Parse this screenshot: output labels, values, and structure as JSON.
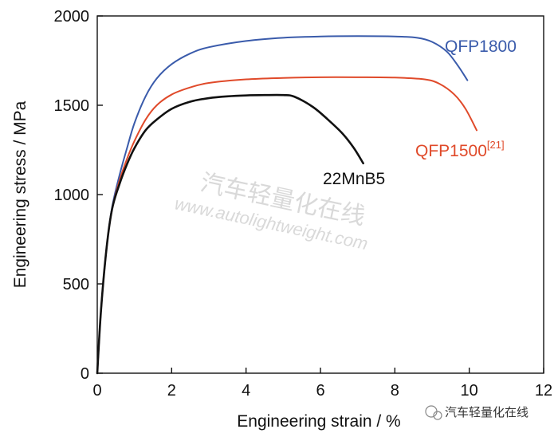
{
  "chart_data": {
    "type": "line",
    "xlabel": "Engineering strain / %",
    "ylabel": "Engineering stress / MPa",
    "xlim": [
      0,
      12
    ],
    "ylim": [
      0,
      2000
    ],
    "xticks": [
      0,
      2,
      4,
      6,
      8,
      10,
      12
    ],
    "yticks": [
      0,
      500,
      1000,
      1500,
      2000
    ],
    "grid": false,
    "series": [
      {
        "name": "QFP1800",
        "label_superscript": "",
        "color": "#3a5bab",
        "x": [
          0,
          0.1,
          0.25,
          0.4,
          0.6,
          0.8,
          1.0,
          1.3,
          1.6,
          2.0,
          2.5,
          3.0,
          4.0,
          5.0,
          6.0,
          7.0,
          8.0,
          8.6,
          9.0,
          9.4,
          9.7,
          9.95
        ],
        "y": [
          0,
          350,
          700,
          930,
          1110,
          1260,
          1400,
          1550,
          1650,
          1730,
          1790,
          1825,
          1860,
          1878,
          1885,
          1887,
          1885,
          1878,
          1855,
          1800,
          1720,
          1640
        ]
      },
      {
        "name": "QFP1500",
        "label_superscript": "[21]",
        "color": "#e04a2a",
        "x": [
          0,
          0.1,
          0.25,
          0.4,
          0.6,
          0.8,
          1.0,
          1.3,
          1.6,
          2.0,
          2.5,
          3.0,
          4.0,
          5.0,
          6.0,
          7.0,
          8.0,
          8.8,
          9.2,
          9.6,
          9.9,
          10.2
        ],
        "y": [
          0,
          350,
          700,
          920,
          1080,
          1200,
          1300,
          1420,
          1500,
          1560,
          1600,
          1625,
          1645,
          1653,
          1657,
          1657,
          1655,
          1645,
          1620,
          1560,
          1480,
          1360
        ]
      },
      {
        "name": "22MnB5",
        "label_superscript": "",
        "color": "#111111",
        "x": [
          0,
          0.1,
          0.25,
          0.4,
          0.6,
          0.8,
          1.0,
          1.3,
          1.6,
          2.0,
          2.5,
          3.0,
          3.5,
          4.0,
          4.5,
          5.0,
          5.3,
          5.8,
          6.2,
          6.6,
          6.9,
          7.15
        ],
        "y": [
          0,
          350,
          700,
          920,
          1060,
          1170,
          1260,
          1360,
          1420,
          1480,
          1520,
          1540,
          1550,
          1555,
          1557,
          1557,
          1548,
          1490,
          1420,
          1340,
          1260,
          1175
        ]
      }
    ]
  },
  "watermark": {
    "chinese": "汽车轻量化在线",
    "url": "www.autolightweight.com",
    "brand": "汽车轻量化在线"
  }
}
